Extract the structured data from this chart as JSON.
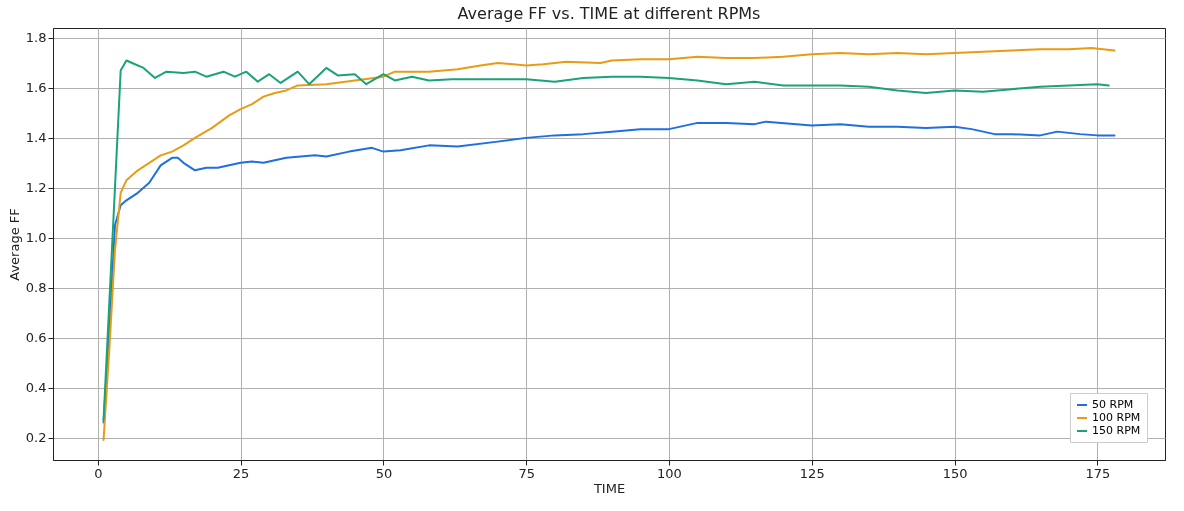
{
  "chart_data": {
    "type": "line",
    "title": "Average FF vs. TIME at different RPMs",
    "xlabel": "TIME",
    "ylabel": "Average FF",
    "xlim": [
      -7.85,
      186.85
    ],
    "ylim": [
      0.11,
      1.84
    ],
    "xticks": [
      0,
      25,
      50,
      75,
      100,
      125,
      150,
      175
    ],
    "yticks": [
      0.2,
      0.4,
      0.6,
      0.8,
      {
        "value": 1,
        "label": "1.0"
      },
      1.2,
      1.4,
      1.6,
      1.8
    ],
    "grid": true,
    "legend": "bottom right",
    "series": [
      {
        "name": "50 RPM",
        "color": "#1f6fe0",
        "x": [
          1,
          2,
          3,
          4,
          5,
          7,
          9,
          11,
          13,
          14,
          15,
          17,
          19,
          21,
          25,
          27,
          29,
          33,
          38,
          40,
          44,
          48,
          50,
          53,
          58,
          63,
          70,
          75,
          80,
          85,
          90,
          95,
          100,
          105,
          110,
          115,
          117,
          125,
          130,
          135,
          140,
          145,
          150,
          153,
          157,
          160,
          165,
          168,
          172,
          175,
          178
        ],
        "values": [
          0.26,
          0.62,
          1.05,
          1.13,
          1.15,
          1.18,
          1.22,
          1.29,
          1.32,
          1.32,
          1.3,
          1.27,
          1.28,
          1.28,
          1.3,
          1.305,
          1.3,
          1.32,
          1.33,
          1.325,
          1.345,
          1.36,
          1.345,
          1.35,
          1.37,
          1.365,
          1.385,
          1.4,
          1.41,
          1.415,
          1.425,
          1.435,
          1.435,
          1.46,
          1.46,
          1.455,
          1.465,
          1.45,
          1.455,
          1.445,
          1.445,
          1.44,
          1.445,
          1.435,
          1.415,
          1.415,
          1.41,
          1.425,
          1.415,
          1.41,
          1.41
        ]
      },
      {
        "name": "100 RPM",
        "color": "#e89c15",
        "x": [
          1,
          2,
          3,
          4,
          5,
          7,
          9,
          11,
          13,
          15,
          17,
          20,
          23,
          25,
          27,
          29,
          31,
          33,
          35,
          40,
          45,
          50,
          52,
          58,
          63,
          67,
          70,
          75,
          78,
          82,
          88,
          90,
          95,
          100,
          105,
          110,
          115,
          120,
          125,
          130,
          135,
          140,
          145,
          150,
          155,
          160,
          165,
          170,
          174,
          178
        ],
        "values": [
          0.19,
          0.55,
          0.95,
          1.18,
          1.23,
          1.27,
          1.3,
          1.33,
          1.345,
          1.37,
          1.4,
          1.44,
          1.49,
          1.515,
          1.535,
          1.565,
          1.58,
          1.59,
          1.61,
          1.615,
          1.63,
          1.645,
          1.665,
          1.665,
          1.675,
          1.69,
          1.7,
          1.69,
          1.695,
          1.705,
          1.7,
          1.71,
          1.715,
          1.715,
          1.725,
          1.72,
          1.72,
          1.725,
          1.735,
          1.74,
          1.735,
          1.74,
          1.735,
          1.74,
          1.745,
          1.75,
          1.755,
          1.755,
          1.76,
          1.75
        ]
      },
      {
        "name": "150 RPM",
        "color": "#1aa37a",
        "x": [
          1,
          3,
          4,
          5,
          6,
          8,
          10,
          12,
          15,
          17,
          19,
          22,
          24,
          26,
          28,
          30,
          32,
          35,
          37,
          40,
          42,
          45,
          47,
          50,
          52,
          55,
          58,
          62,
          65,
          70,
          75,
          80,
          85,
          90,
          95,
          100,
          105,
          110,
          115,
          120,
          125,
          130,
          135,
          140,
          145,
          150,
          155,
          160,
          165,
          170,
          175,
          177
        ],
        "values": [
          0.27,
          1.2,
          1.67,
          1.71,
          1.7,
          1.68,
          1.64,
          1.665,
          1.66,
          1.665,
          1.645,
          1.665,
          1.645,
          1.665,
          1.625,
          1.655,
          1.62,
          1.665,
          1.615,
          1.68,
          1.65,
          1.655,
          1.615,
          1.655,
          1.63,
          1.645,
          1.63,
          1.635,
          1.635,
          1.635,
          1.635,
          1.625,
          1.64,
          1.645,
          1.645,
          1.64,
          1.63,
          1.615,
          1.625,
          1.61,
          1.61,
          1.61,
          1.605,
          1.59,
          1.58,
          1.59,
          1.585,
          1.595,
          1.605,
          1.61,
          1.615,
          1.61
        ]
      }
    ]
  }
}
